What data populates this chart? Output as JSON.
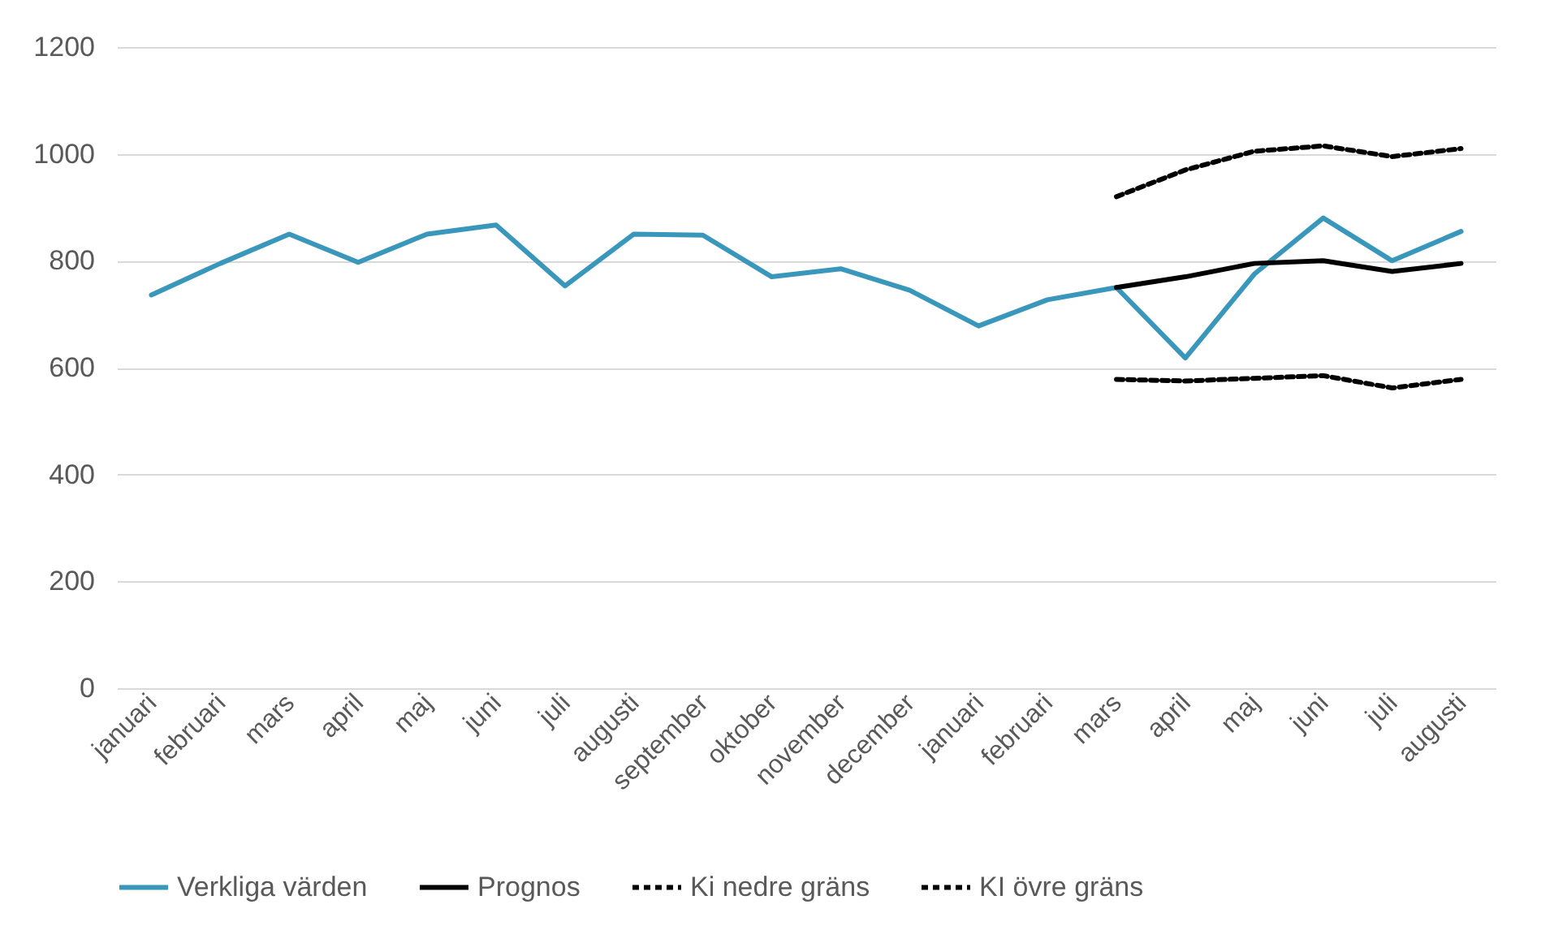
{
  "chart_data": {
    "type": "line",
    "categories": [
      "januari",
      "februari",
      "mars",
      "april",
      "maj",
      "juni",
      "juli",
      "augusti",
      "september",
      "oktober",
      "november",
      "december",
      "januari",
      "februari",
      "mars",
      "april",
      "maj",
      "juni",
      "juli",
      "augusti"
    ],
    "series": [
      {
        "name": "Verkliga värden",
        "color": "#3a97bc",
        "line_style": "solid",
        "values": [
          736,
          795,
          850,
          797,
          850,
          867,
          753,
          850,
          848,
          770,
          785,
          745,
          678,
          727,
          750,
          618,
          775,
          880,
          800,
          855
        ]
      },
      {
        "name": "Prognos",
        "color": "#000000",
        "line_style": "solid",
        "values": [
          null,
          null,
          null,
          null,
          null,
          null,
          null,
          null,
          null,
          null,
          null,
          null,
          null,
          null,
          750,
          770,
          795,
          800,
          780,
          795
        ]
      },
      {
        "name": "Ki nedre gräns",
        "color": "#000000",
        "line_style": "dashed",
        "values": [
          null,
          null,
          null,
          null,
          null,
          null,
          null,
          null,
          null,
          null,
          null,
          null,
          null,
          null,
          578,
          575,
          580,
          585,
          562,
          578
        ]
      },
      {
        "name": "KI övre gräns",
        "color": "#000000",
        "line_style": "dashed",
        "values": [
          null,
          null,
          null,
          null,
          null,
          null,
          null,
          null,
          null,
          null,
          null,
          null,
          null,
          null,
          920,
          970,
          1005,
          1015,
          995,
          1010
        ]
      }
    ],
    "ylim": [
      0,
      1200
    ],
    "yticks": [
      0,
      200,
      400,
      600,
      800,
      1000,
      1200
    ],
    "grid": "y",
    "legend": "bottom",
    "marker": "none"
  }
}
